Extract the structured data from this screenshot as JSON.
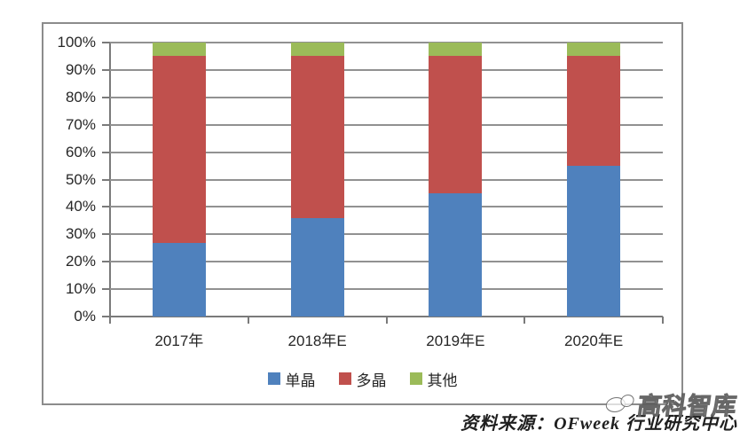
{
  "chart_data": {
    "type": "bar",
    "stacked": true,
    "title": "",
    "categories": [
      "2017年",
      "2018年E",
      "2019年E",
      "2020年E"
    ],
    "series": [
      {
        "name": "单晶",
        "color": "#4f81bd",
        "values": [
          27,
          36,
          45,
          55
        ]
      },
      {
        "name": "多晶",
        "color": "#c0504d",
        "values": [
          68,
          59,
          50,
          40
        ]
      },
      {
        "name": "其他",
        "color": "#9bbb59",
        "values": [
          5,
          5,
          5,
          5
        ]
      }
    ],
    "ylim": [
      0,
      100
    ],
    "ytick_step": 10,
    "ytick_labels": [
      "0%",
      "10%",
      "20%",
      "30%",
      "40%",
      "50%",
      "60%",
      "70%",
      "80%",
      "90%",
      "100%"
    ],
    "grid": true,
    "legend_position": "bottom-center"
  },
  "source_note": {
    "text": "资料来源：OFweek 行业研究中心"
  },
  "watermark": {
    "text": "高科智库",
    "icon": "cloud-circles-logo"
  },
  "style": {
    "gridline_color": "#919191",
    "border_color": "#8c8c8c",
    "text_color": "#262626"
  }
}
